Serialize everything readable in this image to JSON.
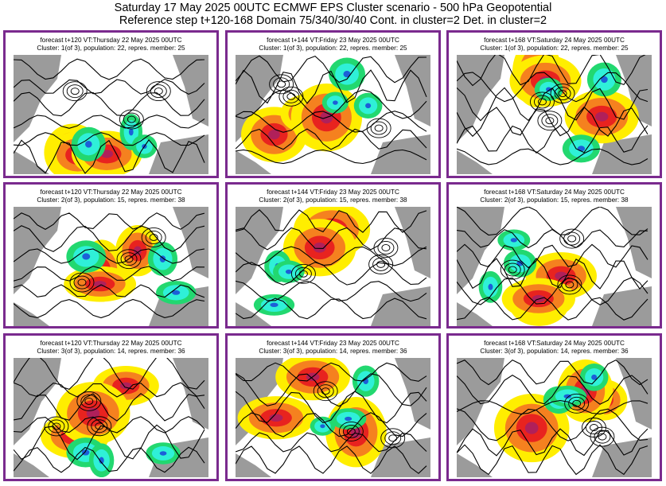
{
  "header": {
    "line1": "Saturday 17 May 2025 00UTC ECMWF EPS Cluster scenario - 500 hPa Geopotential",
    "line2": "Reference step t+120-168 Domain 75/340/30/40 Cont. in cluster=2 Det. in cluster=2"
  },
  "palette": {
    "frame": "#7a2a8e",
    "land_grey": "#9b9b9b",
    "red": "#e8231f",
    "orange": "#f5811f",
    "yellow": "#ffee00",
    "magenta": "#b0205a",
    "cyan": "#2ff0d8",
    "green": "#22d870",
    "blue": "#1c5fd8",
    "contour": "#000000"
  },
  "panels": [
    {
      "line1": "forecast t+120 VT:Thursday 22 May 2025 00UTC",
      "line2": "Cluster: 1(of 3), population: 22, repres. member: 25"
    },
    {
      "line1": "forecast t+144 VT:Friday 23 May 2025 00UTC",
      "line2": "Cluster: 1(of 3), population: 22, repres. member: 25"
    },
    {
      "line1": "forecast t+168 VT:Saturday 24 May 2025 00UTC",
      "line2": "Cluster: 1(of 3), population: 22, repres. member: 25"
    },
    {
      "line1": "forecast t+120 VT:Thursday 22 May 2025 00UTC",
      "line2": "Cluster: 2(of 3), population: 15, repres. member: 38"
    },
    {
      "line1": "forecast t+144 VT:Friday 23 May 2025 00UTC",
      "line2": "Cluster: 2(of 3), population: 15, repres. member: 38"
    },
    {
      "line1": "forecast t+168 VT:Saturday 24 May 2025 00UTC",
      "line2": "Cluster: 2(of 3), population: 15, repres. member: 38"
    },
    {
      "line1": "forecast t+120 VT:Thursday 22 May 2025 00UTC",
      "line2": "Cluster: 3(of 3), population: 14, repres. member: 36"
    },
    {
      "line1": "forecast t+144 VT:Friday 23 May 2025 00UTC",
      "line2": "Cluster: 3(of 3), population: 14, repres. member: 36"
    },
    {
      "line1": "forecast t+168 VT:Saturday 24 May 2025 00UTC",
      "line2": "Cluster: 3(of 3), population: 14, repres. member: 36"
    }
  ]
}
